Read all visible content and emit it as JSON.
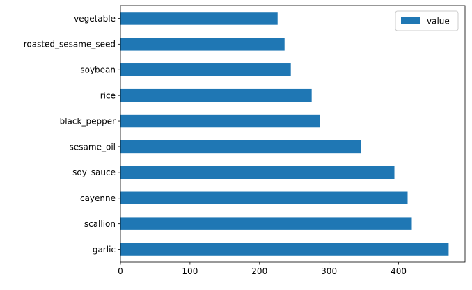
{
  "chart_data": {
    "type": "bar",
    "orientation": "horizontal",
    "title": "",
    "xlabel": "",
    "ylabel": "",
    "categories": [
      "garlic",
      "scallion",
      "cayenne",
      "soy_sauce",
      "sesame_oil",
      "black_pepper",
      "rice",
      "soybean",
      "roasted_sesame_seed",
      "vegetable"
    ],
    "series": [
      {
        "name": "value",
        "values": [
          472,
          419,
          413,
          394,
          346,
          287,
          275,
          245,
          236,
          226
        ],
        "color": "#1f77b4"
      }
    ],
    "xlim": [
      0,
      495.6
    ],
    "xticks": [
      0,
      100,
      200,
      300,
      400
    ],
    "grid": false,
    "legend": {
      "position": "top-right",
      "entries": [
        "value"
      ]
    }
  }
}
